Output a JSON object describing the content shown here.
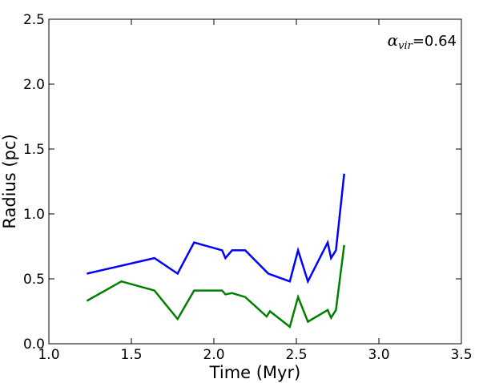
{
  "chart_data": {
    "type": "line",
    "xlabel": "Time (Myr)",
    "ylabel": "Radius (pc)",
    "xlim": [
      1.0,
      3.5
    ],
    "ylim": [
      0.0,
      2.5
    ],
    "xticks": [
      "1.0",
      "1.5",
      "2.0",
      "2.5",
      "3.0",
      "3.5"
    ],
    "yticks": [
      "0.0",
      "0.5",
      "1.0",
      "1.5",
      "2.0",
      "2.5"
    ],
    "grid": false,
    "annotation": {
      "symbol": "α",
      "subscript": "vir",
      "equals": "=",
      "value": "0.64",
      "placement": "top-right"
    },
    "series": [
      {
        "color": "#0000ff",
        "x": [
          1.23,
          1.64,
          1.78,
          1.88,
          2.05,
          2.07,
          2.11,
          2.19,
          2.33,
          2.46,
          2.51,
          2.57,
          2.69,
          2.71,
          2.74,
          2.79
        ],
        "y": [
          0.54,
          0.66,
          0.54,
          0.78,
          0.72,
          0.66,
          0.72,
          0.72,
          0.54,
          0.48,
          0.72,
          0.48,
          0.78,
          0.66,
          0.72,
          1.31
        ]
      },
      {
        "color": "#008000",
        "x": [
          1.23,
          1.44,
          1.64,
          1.78,
          1.88,
          2.05,
          2.07,
          2.11,
          2.19,
          2.32,
          2.34,
          2.46,
          2.51,
          2.57,
          2.69,
          2.71,
          2.74,
          2.79
        ],
        "y": [
          0.33,
          0.48,
          0.41,
          0.19,
          0.41,
          0.41,
          0.38,
          0.39,
          0.36,
          0.21,
          0.25,
          0.13,
          0.36,
          0.17,
          0.26,
          0.2,
          0.26,
          0.76
        ]
      }
    ]
  }
}
